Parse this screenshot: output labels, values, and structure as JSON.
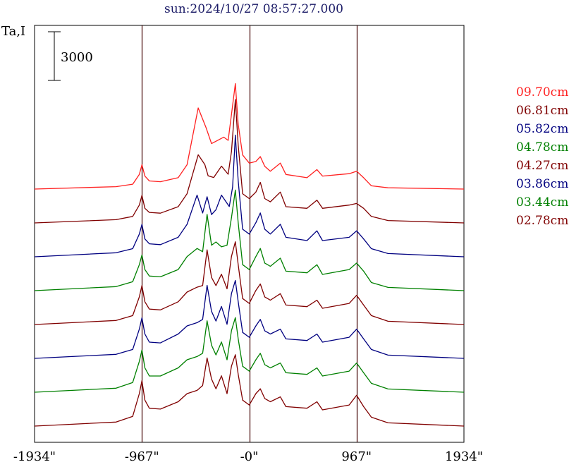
{
  "chart_data": {
    "type": "line",
    "title": "sun:2024/10/27 08:57:27.000",
    "ylabel": "Ta,I",
    "scale_bar_label": "3000",
    "scale_bar_value": 3000,
    "xlim": [
      -1934,
      1934
    ],
    "x_ticks": [
      {
        "value": -1934,
        "label": "-1934\""
      },
      {
        "value": -967,
        "label": "-967\""
      },
      {
        "value": 0,
        "label": "-0\""
      },
      {
        "value": 967,
        "label": "967\""
      },
      {
        "value": 1934,
        "label": "1934\""
      }
    ],
    "vertical_lines": [
      -967,
      0,
      967
    ],
    "grid": false,
    "legend_position": "right",
    "series": [
      {
        "name": "09.70cm",
        "color": "#ff2020",
        "offset": 7,
        "limb_spike": 0.45,
        "points": [
          [
            -1934,
            0
          ],
          [
            -1200,
            150
          ],
          [
            -1050,
            300
          ],
          [
            -990,
            900
          ],
          [
            -967,
            1500
          ],
          [
            -940,
            800
          ],
          [
            -900,
            500
          ],
          [
            -800,
            450
          ],
          [
            -640,
            700
          ],
          [
            -560,
            1500
          ],
          [
            -460,
            5000
          ],
          [
            -390,
            3800
          ],
          [
            -340,
            2800
          ],
          [
            -230,
            3200
          ],
          [
            -190,
            3000
          ],
          [
            -160,
            4600
          ],
          [
            -125,
            6500
          ],
          [
            -100,
            4000
          ],
          [
            -60,
            2100
          ],
          [
            0,
            1600
          ],
          [
            60,
            1700
          ],
          [
            100,
            2000
          ],
          [
            140,
            1400
          ],
          [
            190,
            1100
          ],
          [
            280,
            1600
          ],
          [
            330,
            900
          ],
          [
            520,
            700
          ],
          [
            610,
            1200
          ],
          [
            660,
            800
          ],
          [
            900,
            950
          ],
          [
            967,
            1100
          ],
          [
            1030,
            700
          ],
          [
            1100,
            200
          ],
          [
            1250,
            80
          ],
          [
            1934,
            0
          ]
        ]
      },
      {
        "name": "06.81cm",
        "color": "#800000",
        "offset": 6,
        "limb_spike": 0.55,
        "points": [
          [
            -1934,
            0
          ],
          [
            -1200,
            200
          ],
          [
            -1050,
            400
          ],
          [
            -990,
            1100
          ],
          [
            -967,
            1700
          ],
          [
            -940,
            900
          ],
          [
            -900,
            650
          ],
          [
            -800,
            600
          ],
          [
            -640,
            1000
          ],
          [
            -560,
            1800
          ],
          [
            -460,
            4200
          ],
          [
            -400,
            3600
          ],
          [
            -370,
            2900
          ],
          [
            -320,
            2800
          ],
          [
            -250,
            3500
          ],
          [
            -190,
            3000
          ],
          [
            -160,
            4400
          ],
          [
            -125,
            7600
          ],
          [
            -100,
            4800
          ],
          [
            -60,
            1800
          ],
          [
            0,
            1500
          ],
          [
            60,
            1900
          ],
          [
            100,
            2500
          ],
          [
            140,
            1500
          ],
          [
            190,
            1300
          ],
          [
            280,
            1900
          ],
          [
            330,
            1000
          ],
          [
            520,
            900
          ],
          [
            610,
            1400
          ],
          [
            660,
            900
          ],
          [
            900,
            1100
          ],
          [
            967,
            1200
          ],
          [
            1030,
            900
          ],
          [
            1100,
            400
          ],
          [
            1250,
            150
          ],
          [
            1934,
            0
          ]
        ]
      },
      {
        "name": "05.82cm",
        "color": "#000080",
        "offset": 5,
        "limb_spike": 0.65,
        "points": [
          [
            -1934,
            0
          ],
          [
            -1200,
            250
          ],
          [
            -1050,
            500
          ],
          [
            -990,
            1400
          ],
          [
            -967,
            2000
          ],
          [
            -940,
            1100
          ],
          [
            -900,
            800
          ],
          [
            -800,
            750
          ],
          [
            -640,
            1200
          ],
          [
            -560,
            2000
          ],
          [
            -470,
            3800
          ],
          [
            -420,
            2700
          ],
          [
            -380,
            3700
          ],
          [
            -340,
            2600
          ],
          [
            -300,
            2900
          ],
          [
            -250,
            3800
          ],
          [
            -180,
            3100
          ],
          [
            -150,
            4300
          ],
          [
            -125,
            7500
          ],
          [
            -100,
            4700
          ],
          [
            -60,
            1700
          ],
          [
            0,
            1400
          ],
          [
            60,
            2100
          ],
          [
            100,
            2700
          ],
          [
            140,
            1700
          ],
          [
            190,
            1400
          ],
          [
            280,
            2000
          ],
          [
            330,
            1200
          ],
          [
            520,
            1000
          ],
          [
            610,
            1600
          ],
          [
            660,
            1000
          ],
          [
            900,
            1200
          ],
          [
            967,
            1600
          ],
          [
            1030,
            1100
          ],
          [
            1100,
            500
          ],
          [
            1250,
            200
          ],
          [
            1934,
            0
          ]
        ]
      },
      {
        "name": "04.78cm",
        "color": "#008000",
        "offset": 4,
        "limb_spike": 0.75,
        "points": [
          [
            -1934,
            0
          ],
          [
            -1200,
            250
          ],
          [
            -1050,
            550
          ],
          [
            -990,
            1600
          ],
          [
            -967,
            2200
          ],
          [
            -940,
            1300
          ],
          [
            -900,
            900
          ],
          [
            -800,
            850
          ],
          [
            -640,
            1300
          ],
          [
            -560,
            2100
          ],
          [
            -470,
            2600
          ],
          [
            -420,
            2400
          ],
          [
            -380,
            4700
          ],
          [
            -340,
            2800
          ],
          [
            -300,
            3000
          ],
          [
            -250,
            2700
          ],
          [
            -200,
            2800
          ],
          [
            -160,
            4500
          ],
          [
            -125,
            6200
          ],
          [
            -100,
            4200
          ],
          [
            -60,
            1600
          ],
          [
            0,
            1300
          ],
          [
            60,
            2100
          ],
          [
            100,
            2600
          ],
          [
            140,
            1700
          ],
          [
            190,
            1500
          ],
          [
            280,
            2000
          ],
          [
            330,
            1200
          ],
          [
            520,
            1100
          ],
          [
            610,
            1600
          ],
          [
            660,
            1000
          ],
          [
            900,
            1300
          ],
          [
            967,
            1700
          ],
          [
            1030,
            1200
          ],
          [
            1100,
            500
          ],
          [
            1250,
            200
          ],
          [
            1934,
            0
          ]
        ]
      },
      {
        "name": "04.27cm",
        "color": "#800000",
        "offset": 3,
        "limb_spike": 0.85,
        "points": [
          [
            -1934,
            0
          ],
          [
            -1200,
            250
          ],
          [
            -1050,
            550
          ],
          [
            -990,
            1700
          ],
          [
            -967,
            2400
          ],
          [
            -940,
            1400
          ],
          [
            -900,
            950
          ],
          [
            -800,
            900
          ],
          [
            -640,
            1400
          ],
          [
            -560,
            2000
          ],
          [
            -470,
            2300
          ],
          [
            -420,
            2400
          ],
          [
            -380,
            4600
          ],
          [
            -340,
            2900
          ],
          [
            -300,
            2400
          ],
          [
            -250,
            3100
          ],
          [
            -200,
            2200
          ],
          [
            -160,
            4200
          ],
          [
            -125,
            5100
          ],
          [
            -100,
            3700
          ],
          [
            -60,
            1600
          ],
          [
            0,
            1300
          ],
          [
            60,
            2100
          ],
          [
            100,
            2500
          ],
          [
            140,
            1700
          ],
          [
            190,
            1500
          ],
          [
            280,
            1900
          ],
          [
            330,
            1200
          ],
          [
            520,
            1100
          ],
          [
            610,
            1500
          ],
          [
            660,
            1000
          ],
          [
            900,
            1300
          ],
          [
            967,
            1800
          ],
          [
            1030,
            1200
          ],
          [
            1100,
            550
          ],
          [
            1250,
            200
          ],
          [
            1934,
            0
          ]
        ]
      },
      {
        "name": "03.86cm",
        "color": "#000080",
        "offset": 2,
        "limb_spike": 0.9,
        "points": [
          [
            -1934,
            0
          ],
          [
            -1200,
            250
          ],
          [
            -1050,
            550
          ],
          [
            -990,
            1800
          ],
          [
            -967,
            2500
          ],
          [
            -940,
            1500
          ],
          [
            -900,
            1000
          ],
          [
            -800,
            950
          ],
          [
            -640,
            1500
          ],
          [
            -560,
            2000
          ],
          [
            -470,
            2200
          ],
          [
            -420,
            2400
          ],
          [
            -380,
            4500
          ],
          [
            -340,
            2900
          ],
          [
            -300,
            2300
          ],
          [
            -250,
            3200
          ],
          [
            -200,
            2100
          ],
          [
            -160,
            4000
          ],
          [
            -125,
            4800
          ],
          [
            -100,
            3500
          ],
          [
            -60,
            1600
          ],
          [
            0,
            1300
          ],
          [
            60,
            2000
          ],
          [
            100,
            2400
          ],
          [
            140,
            1700
          ],
          [
            190,
            1500
          ],
          [
            280,
            1800
          ],
          [
            330,
            1200
          ],
          [
            520,
            1100
          ],
          [
            610,
            1500
          ],
          [
            660,
            1000
          ],
          [
            900,
            1300
          ],
          [
            967,
            1800
          ],
          [
            1030,
            1200
          ],
          [
            1100,
            550
          ],
          [
            1250,
            200
          ],
          [
            1934,
            0
          ]
        ]
      },
      {
        "name": "03.44cm",
        "color": "#008000",
        "offset": 1,
        "limb_spike": 0.95,
        "points": [
          [
            -1934,
            0
          ],
          [
            -1200,
            250
          ],
          [
            -1050,
            600
          ],
          [
            -990,
            1900
          ],
          [
            -967,
            2600
          ],
          [
            -940,
            1500
          ],
          [
            -900,
            1000
          ],
          [
            -800,
            1000
          ],
          [
            -640,
            1500
          ],
          [
            -560,
            2000
          ],
          [
            -470,
            2200
          ],
          [
            -420,
            2400
          ],
          [
            -380,
            4400
          ],
          [
            -340,
            2900
          ],
          [
            -300,
            2300
          ],
          [
            -250,
            3100
          ],
          [
            -200,
            2000
          ],
          [
            -160,
            3800
          ],
          [
            -125,
            4600
          ],
          [
            -100,
            3300
          ],
          [
            -60,
            1600
          ],
          [
            0,
            1300
          ],
          [
            60,
            2000
          ],
          [
            100,
            2400
          ],
          [
            140,
            1700
          ],
          [
            190,
            1500
          ],
          [
            280,
            1800
          ],
          [
            330,
            1200
          ],
          [
            520,
            1100
          ],
          [
            610,
            1500
          ],
          [
            660,
            1000
          ],
          [
            900,
            1300
          ],
          [
            967,
            1800
          ],
          [
            1030,
            1200
          ],
          [
            1100,
            550
          ],
          [
            1250,
            200
          ],
          [
            1934,
            0
          ]
        ]
      },
      {
        "name": "02.78cm",
        "color": "#800000",
        "offset": 0,
        "limb_spike": 1.0,
        "points": [
          [
            -1934,
            0
          ],
          [
            -1200,
            250
          ],
          [
            -1050,
            600
          ],
          [
            -990,
            2000
          ],
          [
            -967,
            2800
          ],
          [
            -940,
            1600
          ],
          [
            -900,
            1100
          ],
          [
            -800,
            1050
          ],
          [
            -640,
            1500
          ],
          [
            -560,
            2000
          ],
          [
            -470,
            2200
          ],
          [
            -420,
            2500
          ],
          [
            -380,
            4200
          ],
          [
            -340,
            2900
          ],
          [
            -300,
            2300
          ],
          [
            -250,
            3100
          ],
          [
            -200,
            2000
          ],
          [
            -160,
            3700
          ],
          [
            -125,
            4400
          ],
          [
            -100,
            3200
          ],
          [
            -60,
            1600
          ],
          [
            0,
            1300
          ],
          [
            60,
            2000
          ],
          [
            100,
            2300
          ],
          [
            140,
            1700
          ],
          [
            190,
            1500
          ],
          [
            280,
            1800
          ],
          [
            330,
            1200
          ],
          [
            520,
            1100
          ],
          [
            610,
            1500
          ],
          [
            660,
            1000
          ],
          [
            900,
            1300
          ],
          [
            967,
            1900
          ],
          [
            1030,
            1200
          ],
          [
            1100,
            550
          ],
          [
            1250,
            200
          ],
          [
            1934,
            0
          ]
        ]
      }
    ]
  }
}
